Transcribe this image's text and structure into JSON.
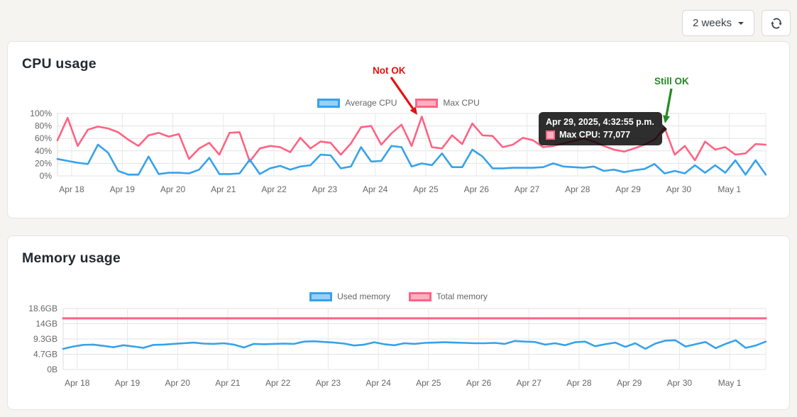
{
  "header": {
    "range_selector": {
      "label": "2 weeks",
      "icon": "chevron-down-icon"
    },
    "refresh_button": {
      "icon": "refresh-icon"
    }
  },
  "panels": {
    "cpu": {
      "title": "CPU usage"
    },
    "memory": {
      "title": "Memory usage"
    }
  },
  "chart_data": [
    {
      "type": "line",
      "title": "CPU usage",
      "legend_position": "top",
      "grid": true,
      "x_tick_labels": [
        "Apr 18",
        "Apr 19",
        "Apr 20",
        "Apr 21",
        "Apr 22",
        "Apr 23",
        "Apr 24",
        "Apr 25",
        "Apr 26",
        "Apr 27",
        "Apr 28",
        "Apr 29",
        "Apr 30",
        "May 1"
      ],
      "ylim": [
        0,
        100
      ],
      "y_tick_values": [
        0,
        20,
        40,
        60,
        80,
        100
      ],
      "y_tick_labels": [
        "0%",
        "20%",
        "40%",
        "60%",
        "80%",
        "100%"
      ],
      "series": [
        {
          "name": "Average CPU",
          "color": "#36a2eb",
          "legend_fill": "#9ad0f5",
          "values": [
            27,
            24,
            21,
            19,
            50,
            37,
            8,
            2,
            2,
            31,
            3,
            5,
            5,
            4,
            10,
            29,
            3,
            3,
            4,
            26,
            3,
            12,
            16,
            10,
            15,
            17,
            34,
            33,
            12,
            15,
            46,
            23,
            24,
            48,
            46,
            15,
            20,
            17,
            36,
            14,
            14,
            42,
            31,
            12,
            12,
            13,
            13,
            13,
            14,
            20,
            15,
            14,
            13,
            15,
            8,
            10,
            6,
            9,
            11,
            19,
            4,
            8,
            4,
            17,
            5,
            17,
            5,
            25,
            2,
            25,
            2
          ]
        },
        {
          "name": "Max CPU",
          "color": "#ff6384",
          "legend_fill": "#ffb1c1",
          "values": [
            57,
            93,
            48,
            74,
            79,
            76,
            70,
            58,
            48,
            65,
            69,
            63,
            67,
            27,
            44,
            53,
            34,
            69,
            70,
            23,
            44,
            48,
            46,
            38,
            61,
            44,
            55,
            53,
            34,
            52,
            78,
            80,
            50,
            68,
            82,
            48,
            95,
            46,
            44,
            65,
            51,
            84,
            65,
            64,
            46,
            50,
            61,
            57,
            46,
            48,
            52,
            56,
            60,
            55,
            48,
            42,
            39,
            44,
            50,
            58,
            77,
            34,
            48,
            25,
            55,
            42,
            46,
            34,
            36,
            51,
            50
          ]
        }
      ],
      "annotations": [
        {
          "text": "Not OK",
          "color": "#e31212"
        },
        {
          "text": "Still OK",
          "color": "#228b22"
        }
      ],
      "tooltip": {
        "title": "Apr 29, 2025, 4:32:55 p.m.",
        "series": "Max CPU",
        "value_label": "Max CPU: 77,077",
        "color": "#ff6384",
        "fill": "#ffb1c1"
      }
    },
    {
      "type": "line",
      "title": "Memory usage",
      "legend_position": "top",
      "grid": true,
      "x_tick_labels": [
        "Apr 18",
        "Apr 19",
        "Apr 20",
        "Apr 21",
        "Apr 22",
        "Apr 23",
        "Apr 24",
        "Apr 25",
        "Apr 26",
        "Apr 27",
        "Apr 28",
        "Apr 29",
        "Apr 30",
        "May 1"
      ],
      "ylim": [
        0,
        18.6
      ],
      "y_tick_values": [
        0,
        4.65,
        9.3,
        13.95,
        18.6
      ],
      "y_tick_labels": [
        "0B",
        "4.7GB",
        "9.3GB",
        "14GB",
        "18.6GB"
      ],
      "series": [
        {
          "name": "Used memory",
          "color": "#36a2eb",
          "legend_fill": "#9ad0f5",
          "values": [
            6.3,
            7.0,
            7.5,
            7.6,
            7.2,
            6.8,
            7.4,
            7.0,
            6.6,
            7.5,
            7.6,
            7.8,
            8.0,
            8.2,
            7.9,
            7.8,
            8.0,
            7.6,
            6.7,
            7.8,
            7.7,
            7.8,
            7.9,
            7.8,
            8.5,
            8.6,
            8.4,
            8.2,
            7.9,
            7.3,
            7.6,
            8.3,
            7.7,
            7.4,
            8.0,
            7.8,
            8.1,
            8.2,
            8.3,
            8.2,
            8.1,
            8.0,
            8.0,
            8.1,
            7.8,
            8.7,
            8.5,
            8.4,
            7.6,
            8.0,
            7.4,
            8.3,
            8.5,
            7.1,
            7.7,
            8.2,
            6.9,
            8.0,
            6.3,
            7.9,
            8.8,
            8.9,
            7.0,
            7.7,
            8.4,
            6.5,
            7.8,
            8.9,
            6.6,
            7.3,
            8.5
          ]
        },
        {
          "name": "Total memory",
          "color": "#ff6384",
          "legend_fill": "#ffb1c1",
          "values": [
            15.6,
            15.6
          ]
        }
      ]
    }
  ]
}
